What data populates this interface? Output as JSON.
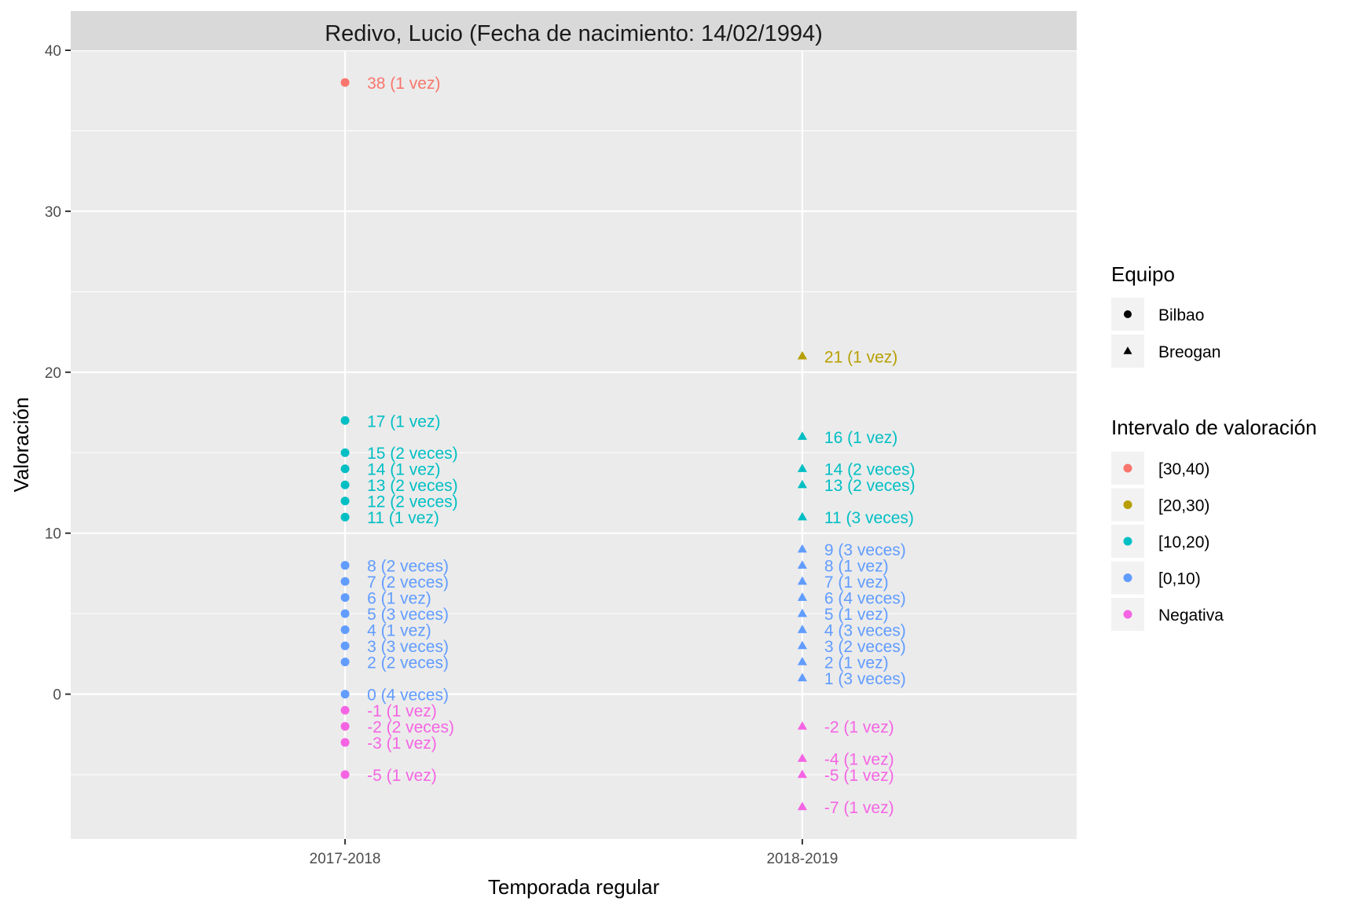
{
  "chart_data": {
    "type": "scatter",
    "title": "Redivo, Lucio (Fecha de nacimiento: 14/02/1994)",
    "xlabel": "Temporada regular",
    "ylabel": "Valoración",
    "categories": [
      "2017-2018",
      "2018-2019"
    ],
    "ylim": [
      -9,
      40
    ],
    "yticks": [
      0,
      10,
      20,
      30,
      40
    ],
    "grid": true,
    "legend_position": "right",
    "legends": {
      "shape": {
        "title": "Equipo",
        "entries": [
          {
            "label": "Bilbao",
            "shape": "circle"
          },
          {
            "label": "Breogan",
            "shape": "triangle"
          }
        ]
      },
      "color": {
        "title": "Intervalo de valoración",
        "entries": [
          {
            "label": "[30,40)",
            "color": "#F8766D"
          },
          {
            "label": "[20,30)",
            "color": "#B79F00"
          },
          {
            "label": "[10,20)",
            "color": "#00BFC4"
          },
          {
            "label": "[0,10)",
            "color": "#619CFF"
          },
          {
            "label": "Negativa",
            "color": "#F564E3"
          }
        ]
      }
    },
    "series": [
      {
        "name": "Bilbao",
        "shape": "circle",
        "x": "2017-2018",
        "points": [
          {
            "y": 38,
            "interval": "[30,40)",
            "label": "38 (1 vez)"
          },
          {
            "y": 17,
            "interval": "[10,20)",
            "label": "17 (1 vez)"
          },
          {
            "y": 15,
            "interval": "[10,20)",
            "label": "15 (2 veces)"
          },
          {
            "y": 14,
            "interval": "[10,20)",
            "label": "14 (1 vez)"
          },
          {
            "y": 13,
            "interval": "[10,20)",
            "label": "13 (2 veces)"
          },
          {
            "y": 12,
            "interval": "[10,20)",
            "label": "12 (2 veces)"
          },
          {
            "y": 11,
            "interval": "[10,20)",
            "label": "11 (1 vez)"
          },
          {
            "y": 8,
            "interval": "[0,10)",
            "label": "8 (2 veces)"
          },
          {
            "y": 7,
            "interval": "[0,10)",
            "label": "7 (2 veces)"
          },
          {
            "y": 6,
            "interval": "[0,10)",
            "label": "6 (1 vez)"
          },
          {
            "y": 5,
            "interval": "[0,10)",
            "label": "5 (3 veces)"
          },
          {
            "y": 4,
            "interval": "[0,10)",
            "label": "4 (1 vez)"
          },
          {
            "y": 3,
            "interval": "[0,10)",
            "label": "3 (3 veces)"
          },
          {
            "y": 2,
            "interval": "[0,10)",
            "label": "2 (2 veces)"
          },
          {
            "y": 0,
            "interval": "[0,10)",
            "label": "0 (4 veces)"
          },
          {
            "y": -1,
            "interval": "Negativa",
            "label": "-1 (1 vez)"
          },
          {
            "y": -2,
            "interval": "Negativa",
            "label": "-2 (2 veces)"
          },
          {
            "y": -3,
            "interval": "Negativa",
            "label": "-3 (1 vez)"
          },
          {
            "y": -5,
            "interval": "Negativa",
            "label": "-5 (1 vez)"
          }
        ]
      },
      {
        "name": "Breogan",
        "shape": "triangle",
        "x": "2018-2019",
        "points": [
          {
            "y": 21,
            "interval": "[20,30)",
            "label": "21 (1 vez)"
          },
          {
            "y": 16,
            "interval": "[10,20)",
            "label": "16 (1 vez)"
          },
          {
            "y": 14,
            "interval": "[10,20)",
            "label": "14 (2 veces)"
          },
          {
            "y": 13,
            "interval": "[10,20)",
            "label": "13 (2 veces)"
          },
          {
            "y": 11,
            "interval": "[10,20)",
            "label": "11 (3 veces)"
          },
          {
            "y": 9,
            "interval": "[0,10)",
            "label": "9 (3 veces)"
          },
          {
            "y": 8,
            "interval": "[0,10)",
            "label": "8 (1 vez)"
          },
          {
            "y": 7,
            "interval": "[0,10)",
            "label": "7 (1 vez)"
          },
          {
            "y": 6,
            "interval": "[0,10)",
            "label": "6 (4 veces)"
          },
          {
            "y": 5,
            "interval": "[0,10)",
            "label": "5 (1 vez)"
          },
          {
            "y": 4,
            "interval": "[0,10)",
            "label": "4 (3 veces)"
          },
          {
            "y": 3,
            "interval": "[0,10)",
            "label": "3 (2 veces)"
          },
          {
            "y": 2,
            "interval": "[0,10)",
            "label": "2 (1 vez)"
          },
          {
            "y": 1,
            "interval": "[0,10)",
            "label": "1 (3 veces)"
          },
          {
            "y": -2,
            "interval": "Negativa",
            "label": "-2 (1 vez)"
          },
          {
            "y": -4,
            "interval": "Negativa",
            "label": "-4 (1 vez)"
          },
          {
            "y": -5,
            "interval": "Negativa",
            "label": "-5 (1 vez)"
          },
          {
            "y": -7,
            "interval": "Negativa",
            "label": "-7 (1 vez)"
          }
        ]
      }
    ]
  }
}
